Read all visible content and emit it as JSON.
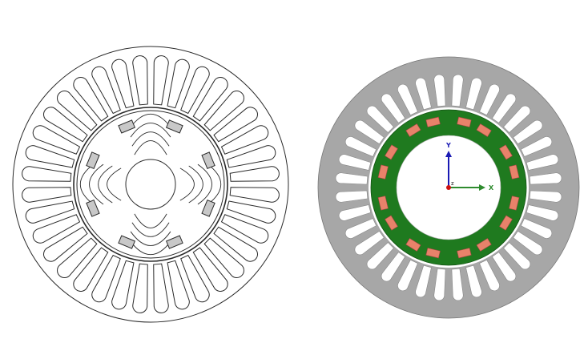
{
  "figures": {
    "left": {
      "stator_slots": 36,
      "rotor_poles": 8,
      "colors": {
        "line": "#2a2a2a",
        "magnet": "#c8c8c8",
        "background": "#ffffff"
      }
    },
    "right": {
      "stator_slots": 36,
      "rotor_poles": 8,
      "colors": {
        "stator": "#a7a7a7",
        "rotor": "#1f7a1f",
        "magnet": "#e8826a",
        "shaft": "#ffffff",
        "x_axis": "#2e8b2e",
        "y_axis": "#1a1ab4",
        "origin": "#cc1111"
      },
      "axes": {
        "x_label": "X",
        "y_label": "Y",
        "z_label": "Z"
      }
    }
  }
}
